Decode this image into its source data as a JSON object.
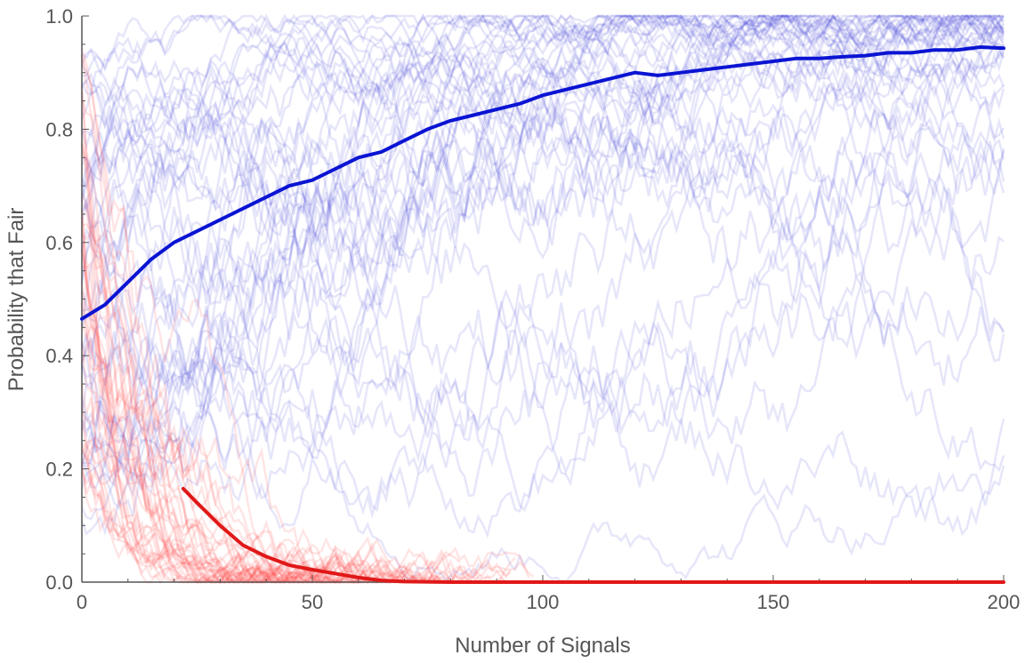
{
  "chart_data": {
    "type": "line",
    "title": "",
    "xlabel": "Number of Signals",
    "ylabel": "Probability that Fair",
    "xlim": [
      0,
      200
    ],
    "ylim": [
      0,
      1
    ],
    "xticks": [
      "0",
      "50",
      "100",
      "150",
      "200"
    ],
    "yticks": [
      "0.0",
      "0.2",
      "0.4",
      "0.6",
      "0.8",
      "1.0"
    ],
    "grid": false,
    "legend": "none",
    "colors": {
      "fair_mean": "#0a14d2",
      "fair_runs": "#3a3ad8",
      "unfair_mean": "#e01818",
      "unfair_runs": "#ff4a4a",
      "axis": "#555555"
    },
    "series": [
      {
        "role": "mean-fair",
        "color": "#0a14d2",
        "x": [
          0,
          5,
          10,
          15,
          20,
          25,
          30,
          35,
          40,
          45,
          50,
          55,
          60,
          65,
          70,
          75,
          80,
          85,
          90,
          95,
          100,
          105,
          110,
          115,
          120,
          125,
          130,
          135,
          140,
          145,
          150,
          155,
          160,
          165,
          170,
          175,
          180,
          185,
          190,
          195,
          200
        ],
        "y": [
          0.465,
          0.49,
          0.53,
          0.57,
          0.6,
          0.62,
          0.64,
          0.66,
          0.68,
          0.7,
          0.71,
          0.73,
          0.75,
          0.76,
          0.78,
          0.8,
          0.815,
          0.825,
          0.835,
          0.845,
          0.86,
          0.87,
          0.88,
          0.89,
          0.9,
          0.895,
          0.9,
          0.905,
          0.91,
          0.915,
          0.92,
          0.925,
          0.925,
          0.928,
          0.93,
          0.935,
          0.935,
          0.94,
          0.94,
          0.945,
          0.943
        ]
      },
      {
        "role": "mean-unfair",
        "color": "#e01818",
        "x": [
          22,
          25,
          30,
          35,
          40,
          45,
          50,
          55,
          60,
          65,
          70,
          80,
          90,
          100,
          120,
          150,
          200
        ],
        "y": [
          0.165,
          0.14,
          0.1,
          0.065,
          0.045,
          0.03,
          0.022,
          0.015,
          0.008,
          0.003,
          0.001,
          0.0,
          0.0,
          0.0,
          0.0,
          0.0,
          0.0
        ]
      }
    ]
  }
}
